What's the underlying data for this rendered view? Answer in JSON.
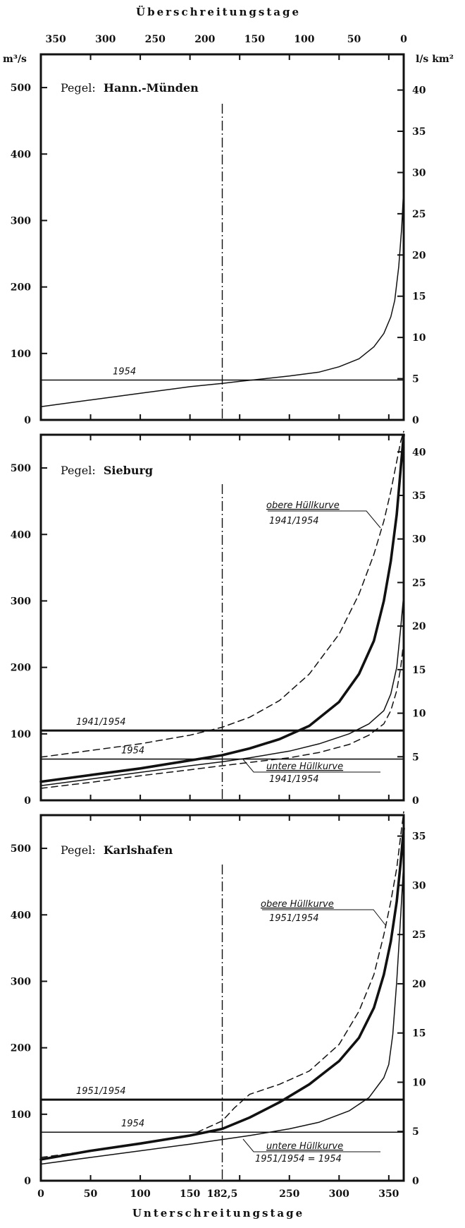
{
  "chart_data": {
    "type": "line",
    "top_axis": {
      "title": "Überschreitungstage",
      "ticks": [
        "350",
        "300",
        "250",
        "200",
        "150",
        "100",
        "50",
        "0"
      ]
    },
    "bottom_axis": {
      "title": "Unterschreitungstage",
      "ticks": [
        "0",
        "50",
        "100",
        "150",
        "182,5",
        "250",
        "300",
        "350"
      ]
    },
    "x_range": [
      0,
      365
    ],
    "marker_day": 182.5,
    "left_unit": "m³/s",
    "right_unit": "l/s km²",
    "panels": [
      {
        "station_prefix": "Pegel:",
        "station": "Hann.-Münden",
        "ylim": [
          0,
          550
        ],
        "y_ticks": [
          0,
          100,
          200,
          300,
          400,
          500
        ],
        "right_ticks": [
          0,
          5,
          10,
          15,
          20,
          25,
          30,
          35,
          40
        ],
        "right_per_left": 0.0806,
        "hlines": [
          {
            "y": 60,
            "label": "1954",
            "weight": "thin"
          }
        ],
        "annotations": [],
        "series": [
          {
            "label": "1954",
            "style": "solid",
            "weight": "thin",
            "x": [
              0,
              50,
              100,
              150,
              182.5,
              200,
              250,
              280,
              300,
              320,
              335,
              345,
              352,
              356,
              360,
              363,
              365
            ],
            "y": [
              20,
              30,
              40,
              50,
              55,
              58,
              66,
              72,
              80,
              92,
              110,
              130,
              155,
              180,
              230,
              290,
              350
            ]
          }
        ]
      },
      {
        "station_prefix": "Pegel:",
        "station": "Sieburg",
        "ylim": [
          0,
          550
        ],
        "y_ticks": [
          0,
          100,
          200,
          300,
          400,
          500
        ],
        "right_ticks": [
          0,
          5,
          10,
          15,
          20,
          25,
          30,
          35,
          40
        ],
        "right_per_left": 0.0763,
        "hlines": [
          {
            "y": 105,
            "label": "1941/1954",
            "weight": "thick"
          },
          {
            "y": 62,
            "label": "1954",
            "weight": "thin"
          }
        ],
        "annotations": [
          {
            "line1": "obere Hüllkurve",
            "line2": "1941/1954"
          },
          {
            "line1": "untere Hüllkurve",
            "line2": "1941/1954"
          }
        ],
        "series": [
          {
            "label": "obere Hüllkurve 1941/1954",
            "style": "dashed",
            "weight": "thin",
            "x": [
              0,
              50,
              100,
              150,
              182.5,
              210,
              240,
              270,
              300,
              320,
              335,
              345,
              352,
              358,
              362,
              365
            ],
            "y": [
              65,
              75,
              85,
              98,
              110,
              125,
              150,
              190,
              250,
              310,
              370,
              420,
              465,
              510,
              540,
              560
            ]
          },
          {
            "label": "1954",
            "style": "solid",
            "weight": "thick",
            "x": [
              0,
              50,
              100,
              150,
              182.5,
              210,
              240,
              270,
              300,
              320,
              335,
              345,
              352,
              358,
              362,
              365
            ],
            "y": [
              28,
              38,
              48,
              60,
              68,
              78,
              92,
              112,
              148,
              190,
              240,
              300,
              360,
              430,
              500,
              550
            ]
          },
          {
            "label": "",
            "style": "solid",
            "weight": "thin",
            "x": [
              0,
              50,
              100,
              150,
              182.5,
              210,
              250,
              280,
              310,
              330,
              345,
              352,
              358,
              362,
              365
            ],
            "y": [
              22,
              32,
              42,
              52,
              58,
              64,
              74,
              85,
              100,
              115,
              135,
              160,
              200,
              260,
              310
            ]
          },
          {
            "label": "untere Hüllkurve 1941/1954",
            "style": "dashed",
            "weight": "thin",
            "x": [
              0,
              50,
              100,
              150,
              182.5,
              210,
              250,
              280,
              310,
              330,
              345,
              352,
              358,
              362,
              365
            ],
            "y": [
              18,
              27,
              37,
              46,
              52,
              57,
              64,
              72,
              84,
              98,
              115,
              135,
              165,
              200,
              240
            ]
          }
        ]
      },
      {
        "station_prefix": "Pegel:",
        "station": "Karlshafen",
        "ylim": [
          0,
          550
        ],
        "y_ticks": [
          0,
          100,
          200,
          300,
          400,
          500
        ],
        "right_ticks": [
          0,
          5,
          10,
          15,
          20,
          25,
          30,
          35
        ],
        "right_per_left": 0.0675,
        "hlines": [
          {
            "y": 122,
            "label": "1951/1954",
            "weight": "thick"
          },
          {
            "y": 73,
            "label": "1954",
            "weight": "thin"
          }
        ],
        "annotations": [
          {
            "line1": "obere Hüllkurve",
            "line2": "1951/1954"
          },
          {
            "line1": "untere Hüllkurve",
            "line2": "1951/1954 = 1954"
          }
        ],
        "series": [
          {
            "label": "obere Hüllkurve 1951/1954",
            "style": "dashed",
            "weight": "thin",
            "x": [
              0,
              50,
              100,
              150,
              182.5,
              195,
              210,
              240,
              270,
              300,
              320,
              335,
              345,
              352,
              358,
              362,
              365
            ],
            "y": [
              35,
              45,
              55,
              68,
              90,
              110,
              130,
              145,
              165,
              205,
              255,
              310,
              370,
              420,
              470,
              520,
              560
            ]
          },
          {
            "label": "1954",
            "style": "solid",
            "weight": "thick",
            "x": [
              0,
              50,
              100,
              150,
              182.5,
              210,
              240,
              270,
              300,
              320,
              335,
              345,
              352,
              358,
              362,
              365
            ],
            "y": [
              32,
              45,
              56,
              68,
              78,
              95,
              118,
              145,
              180,
              215,
              260,
              310,
              360,
              420,
              480,
              530
            ]
          },
          {
            "label": "untere Hüllkurve 1951/1954 = 1954",
            "style": "solid",
            "weight": "thin",
            "x": [
              0,
              50,
              100,
              150,
              182.5,
              210,
              250,
              280,
              310,
              330,
              345,
              350,
              354,
              358,
              362,
              365
            ],
            "y": [
              25,
              35,
              45,
              55,
              62,
              68,
              78,
              88,
              105,
              125,
              155,
              175,
              220,
              300,
              400,
              480
            ]
          }
        ]
      }
    ]
  }
}
